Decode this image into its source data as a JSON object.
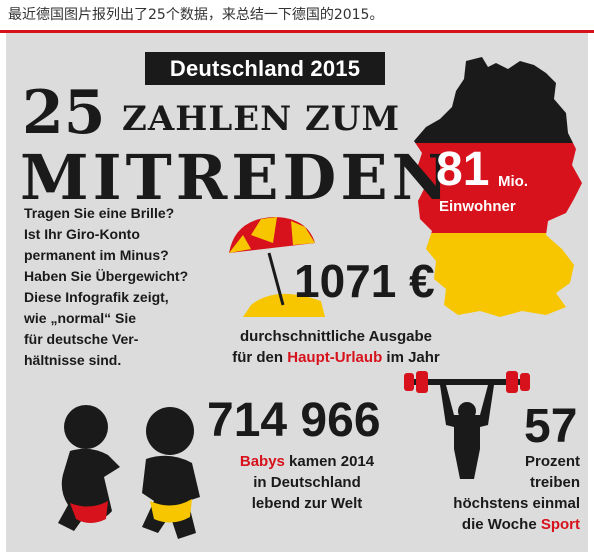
{
  "caption": "最近德国图片报列出了25个数据，来总结一下德国的2015。",
  "header": {
    "badge": "Deutschland 2015",
    "title_number": "25",
    "title_line1": "ZAHLEN ZUM",
    "title_line2": "MITREDEN"
  },
  "intro": {
    "lines": [
      "Tragen Sie eine Brille?",
      "Ist Ihr Giro-Konto",
      "permanent im Minus?",
      "Haben Sie Übergewicht?",
      "Diese Infografik zeigt,",
      "wie „normal“ Sie",
      "für deutsche Ver-",
      "hältnisse sind."
    ]
  },
  "population": {
    "value": "81",
    "unit": "Mio.",
    "label": "Einwohner",
    "flag_colors": [
      "#1a1a1a",
      "#d7121c",
      "#f7c600"
    ]
  },
  "vacation": {
    "value": "1071 €",
    "line1": "durchschnittliche Ausgabe",
    "line2_pre": "für den ",
    "line2_highlight": "Haupt-Urlaub",
    "line2_post": " im Jahr"
  },
  "babies": {
    "value": "714 966",
    "line1_highlight": "Babys",
    "line1_post": " kamen 2014",
    "line2": "in Deutschland",
    "line3": "lebend zur Welt"
  },
  "sport": {
    "value": "57",
    "line1": "Prozent",
    "line2": "treiben",
    "line3": "höchstens einmal",
    "line4_pre": "die Woche ",
    "line4_highlight": "Sport"
  },
  "colors": {
    "accent_red": "#d7121c",
    "dark": "#1a1a1a",
    "panel": "#dcdcdc",
    "yellow": "#f7c600"
  },
  "icons": [
    "germany-map-icon",
    "beach-umbrella-icon",
    "weightlifter-icon",
    "babies-icon"
  ]
}
